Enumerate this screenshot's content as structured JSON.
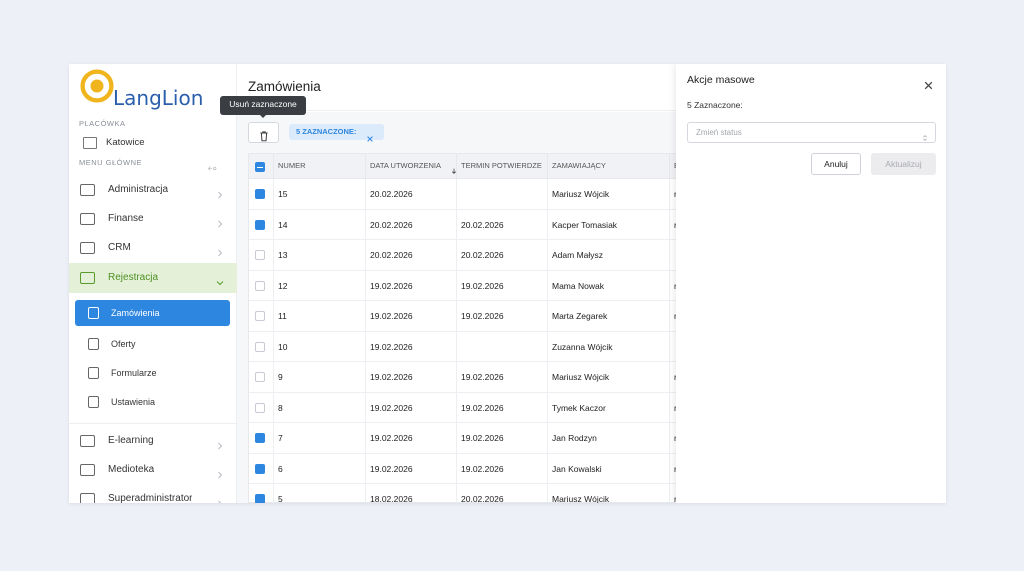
{
  "sidebar": {
    "logo": "LangLion",
    "branch_label": "PLACÓWKA",
    "branch": "Katowice",
    "menu_label": "MENU GŁÓWNE",
    "items": [
      "Administracja",
      "Finanse",
      "CRM",
      "Rejestracja"
    ],
    "subitems": [
      "Zamówienia",
      "Oferty",
      "Formularze",
      "Ustawienia"
    ],
    "items_after": [
      "E-learning",
      "Medioteka",
      "Superadministrator"
    ],
    "active_subitem": 0
  },
  "main": {
    "title": "Zamówienia",
    "tooltip": "Usuń zaznaczone",
    "selected_chip": "5 ZAZNACZONE:",
    "header_checkbox": "indeterminate",
    "columns": [
      "NUMER",
      "DATA UTWORZENIA",
      "TERMIN POTWIERDZE",
      "ZAMAWIAJĄCY",
      "E"
    ],
    "rows": [
      {
        "checked": true,
        "cells": [
          15,
          "20.02.2026",
          null,
          "Mariusz Wójcik",
          "r"
        ]
      },
      {
        "checked": true,
        "cells": [
          14,
          "20.02.2026",
          "20.02.2026",
          "Kacper Tomasiak",
          "r"
        ]
      },
      {
        "checked": false,
        "cells": [
          13,
          "20.02.2026",
          "20.02.2026",
          "Adam Małysz",
          null
        ]
      },
      {
        "checked": false,
        "cells": [
          12,
          "19.02.2026",
          "19.02.2026",
          "Mama Nowak",
          "r"
        ]
      },
      {
        "checked": false,
        "cells": [
          11,
          "19.02.2026",
          "19.02.2026",
          "Marta Zegarek",
          "r"
        ]
      },
      {
        "checked": false,
        "cells": [
          10,
          "19.02.2026",
          null,
          "Zuzanna Wójcik",
          null
        ]
      },
      {
        "checked": false,
        "cells": [
          9,
          "19.02.2026",
          "19.02.2026",
          "Mariusz Wójcik",
          "r"
        ]
      },
      {
        "checked": false,
        "cells": [
          8,
          "19.02.2026",
          "19.02.2026",
          "Tymek Kaczor",
          "r"
        ]
      },
      {
        "checked": true,
        "cells": [
          7,
          "19.02.2026",
          "19.02.2026",
          "Jan Rodzyn",
          "r"
        ]
      },
      {
        "checked": true,
        "cells": [
          6,
          "19.02.2026",
          "19.02.2026",
          "Jan Kowalski",
          "r"
        ]
      },
      {
        "checked": true,
        "cells": [
          5,
          "18.02.2026",
          "20.02.2026",
          "Mariusz Wójcik",
          "r"
        ]
      }
    ]
  },
  "panel": {
    "title": "Akcje masowe",
    "selected_count": "5 Zaznaczone:",
    "status_placeholder": "Zmień status",
    "cancel": "Anuluj",
    "update": "Aktualizuj"
  }
}
